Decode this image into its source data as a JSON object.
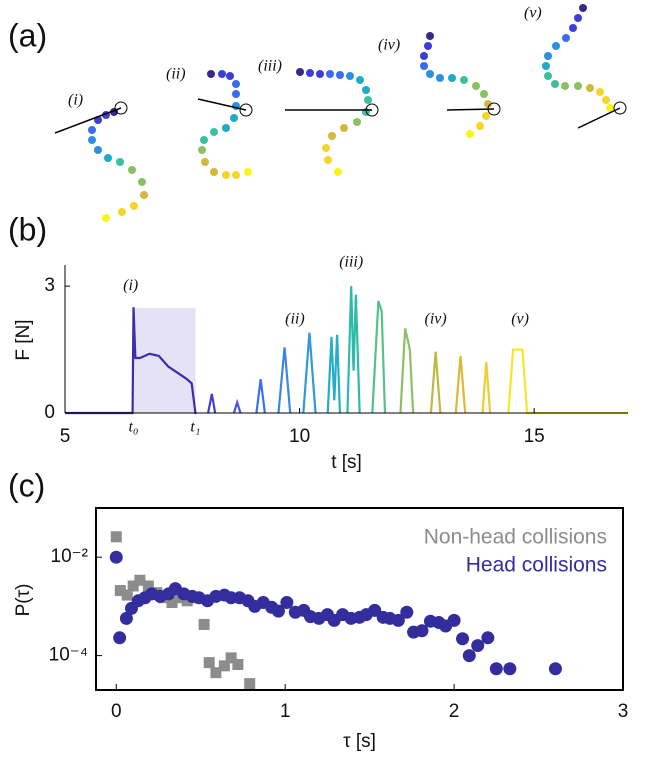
{
  "panels": [
    "(a)",
    "(b)",
    "(c)"
  ],
  "configurations": [
    "(i)",
    "(ii)",
    "(iii)",
    "(iv)",
    "(v)"
  ],
  "chart_data": [
    {
      "type": "line",
      "xlabel": "t [s]",
      "ylabel": "F [N]",
      "xlim": [
        5,
        17
      ],
      "ylim": [
        0,
        3.5
      ],
      "xticks": [
        5,
        10,
        15
      ],
      "yticks": [
        0,
        3
      ],
      "shade": [
        6.46,
        7.78
      ],
      "shade_color": "#e4e2f4",
      "annotations": [
        {
          "text": "(i)",
          "x": 6.4,
          "y": 3.0
        },
        {
          "text": "(ii)",
          "x": 9.9,
          "y": 2.2
        },
        {
          "text": "(iii)",
          "x": 11.1,
          "y": 3.55
        },
        {
          "text": "(iv)",
          "x": 12.9,
          "y": 2.2
        },
        {
          "text": "(v)",
          "x": 14.7,
          "y": 2.2
        },
        {
          "text": "t₀",
          "x": 6.46,
          "y": -0.35
        },
        {
          "text": "t₁",
          "x": 7.78,
          "y": -0.35
        }
      ],
      "series": [
        {
          "color": "#3b2fa8",
          "x": [
            5,
            6.44,
            6.46,
            6.5,
            6.6,
            6.8,
            7.0,
            7.2,
            7.4,
            7.6,
            7.7,
            7.78,
            7.8
          ],
          "values": [
            0,
            0,
            2.5,
            1.3,
            1.3,
            1.4,
            1.35,
            1.1,
            0.95,
            0.8,
            0.7,
            0,
            0
          ]
        },
        {
          "color": "#4040d0",
          "x": [
            8.05,
            8.13,
            8.2
          ],
          "values": [
            0,
            0.45,
            0
          ]
        },
        {
          "color": "#4a55e6",
          "x": [
            8.6,
            8.67,
            8.74
          ],
          "values": [
            0,
            0.25,
            0
          ]
        },
        {
          "color": "#3f6ef0",
          "x": [
            9.08,
            9.17,
            9.26
          ],
          "values": [
            0,
            0.8,
            0
          ]
        },
        {
          "color": "#3a86e8",
          "x": [
            9.55,
            9.68,
            9.8
          ],
          "values": [
            0,
            1.55,
            0
          ]
        },
        {
          "color": "#2e9bd8",
          "x": [
            10.08,
            10.21,
            10.34
          ],
          "values": [
            0,
            1.9,
            0
          ]
        },
        {
          "color": "#25aec8",
          "x": [
            10.6,
            10.68,
            10.74,
            10.8,
            10.86
          ],
          "values": [
            0,
            1.8,
            0.3,
            1.85,
            0
          ]
        },
        {
          "color": "#2dbaa8",
          "x": [
            11.02,
            11.1,
            11.15,
            11.2,
            11.28
          ],
          "values": [
            0,
            3.0,
            1.0,
            2.8,
            0
          ]
        },
        {
          "color": "#55c08a",
          "x": [
            11.55,
            11.68,
            11.75,
            11.82
          ],
          "values": [
            0,
            2.65,
            2.4,
            0
          ]
        },
        {
          "color": "#8cc068",
          "x": [
            12.15,
            12.25,
            12.35,
            12.42
          ],
          "values": [
            0,
            2.0,
            1.5,
            0
          ]
        },
        {
          "color": "#c0b840",
          "x": [
            12.8,
            12.9,
            13.0
          ],
          "values": [
            0,
            1.45,
            0
          ]
        },
        {
          "color": "#e0b838",
          "x": [
            13.33,
            13.43,
            13.53
          ],
          "values": [
            0,
            1.35,
            0
          ]
        },
        {
          "color": "#f0cc30",
          "x": [
            13.9,
            13.98,
            14.06
          ],
          "values": [
            0,
            1.2,
            0
          ]
        },
        {
          "color": "#f5e62a",
          "x": [
            14.45,
            14.55,
            14.64,
            14.75,
            14.85,
            17
          ],
          "values": [
            0,
            1.5,
            1.5,
            1.5,
            0,
            0
          ]
        }
      ]
    },
    {
      "type": "scatter",
      "xlabel": "τ [s]",
      "ylabel": "P(τ)",
      "log_y": true,
      "legend": "upper right",
      "xlim": [
        -0.12,
        3
      ],
      "ylim": [
        2e-05,
        0.1
      ],
      "xticks": [
        0,
        1,
        2,
        3
      ],
      "yticks": [
        {
          "value": 0.01,
          "label": "10⁻²"
        },
        {
          "value": 0.0001,
          "label": "10⁻⁴"
        }
      ],
      "series": [
        {
          "name": "Non-head collisions",
          "color": "#8c8c8c",
          "marker": "square",
          "x": [
            0,
            0.024,
            0.065,
            0.1,
            0.14,
            0.19,
            0.24,
            0.28,
            0.33,
            0.38,
            0.42,
            0.47,
            0.52,
            0.55,
            0.59,
            0.64,
            0.68,
            0.72,
            0.79
          ],
          "values": [
            0.026,
            0.0021,
            0.0017,
            0.0026,
            0.0034,
            0.0026,
            0.0019,
            0.0015,
            0.0012,
            0.0015,
            0.0013,
            0.0015,
            0.00043,
            7.2e-05,
            4.5e-05,
            6.2e-05,
            9e-05,
            6.6e-05,
            2.7e-05
          ]
        },
        {
          "name": "Head collisions",
          "color": "#332d9e",
          "marker": "circle",
          "x": [
            0,
            0.02,
            0.06,
            0.09,
            0.13,
            0.17,
            0.21,
            0.26,
            0.31,
            0.35,
            0.4,
            0.45,
            0.49,
            0.54,
            0.59,
            0.64,
            0.68,
            0.73,
            0.78,
            0.82,
            0.87,
            0.92,
            0.96,
            1.01,
            1.06,
            1.11,
            1.15,
            1.2,
            1.25,
            1.29,
            1.34,
            1.39,
            1.44,
            1.48,
            1.53,
            1.58,
            1.62,
            1.67,
            1.72,
            1.76,
            1.81,
            1.86,
            1.91,
            1.95,
            2.0,
            2.05,
            2.09,
            2.14,
            2.2,
            2.25,
            2.33,
            2.6
          ],
          "values": [
            0.01,
            0.00023,
            0.00057,
            0.00091,
            0.0013,
            0.0015,
            0.0018,
            0.0016,
            0.0018,
            0.0023,
            0.0018,
            0.0016,
            0.0015,
            0.0013,
            0.0016,
            0.0017,
            0.0015,
            0.0015,
            0.0013,
            0.001,
            0.0012,
            0.00096,
            0.0008,
            0.0012,
            0.00076,
            0.00083,
            0.00062,
            0.00057,
            0.00068,
            0.00052,
            0.00068,
            0.00057,
            0.0006,
            0.00068,
            0.00083,
            0.0006,
            0.00057,
            0.00052,
            0.00076,
            0.0003,
            0.00032,
            0.0005,
            0.00047,
            0.0004,
            0.00052,
            0.00022,
            0.0001,
            0.00016,
            0.00023,
            5.4e-05,
            5.4e-05,
            5.4e-05
          ]
        }
      ]
    }
  ]
}
